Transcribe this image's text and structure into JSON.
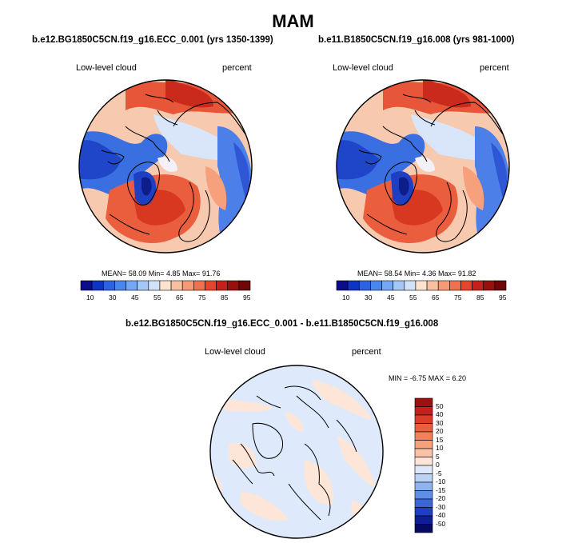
{
  "title": "MAM",
  "panels": [
    {
      "case": "b.e12.BG1850C5CN.f19_g16.ECC_0.001 (yrs 1350-1399)",
      "variable": "Low-level cloud",
      "units": "percent",
      "stats": "MEAN=  58.09  Min=   4.85  Max=  91.76"
    },
    {
      "case": "b.e11.B1850C5CN.f19_g16.008 (yrs 981-1000)",
      "variable": "Low-level cloud",
      "units": "percent",
      "stats": "MEAN=  58.54  Min=   4.36  Max=  91.82"
    }
  ],
  "diff_panel": {
    "case": "b.e12.BG1850C5CN.f19_g16.ECC_0.001 - b.e11.B1850C5CN.f19_g16.008",
    "variable": "Low-level cloud",
    "units": "percent",
    "minmax": "MIN =  -6.75 MAX =   6.20"
  },
  "horizontal_colorbar": {
    "ticks": [
      "10",
      "30",
      "45",
      "55",
      "65",
      "75",
      "85",
      "95"
    ],
    "colors": [
      "#0d0d8c",
      "#1133c4",
      "#2b63e0",
      "#4a86ee",
      "#77a6f3",
      "#a6c6f6",
      "#d0e1f9",
      "#fbe3d2",
      "#f8c0a2",
      "#f49a76",
      "#ee7150",
      "#e2462b",
      "#c7201a",
      "#98100e",
      "#6e0707"
    ]
  },
  "vertical_colorbar": {
    "ticks": [
      "50",
      "40",
      "30",
      "20",
      "15",
      "10",
      "5",
      "0",
      "-5",
      "-10",
      "-15",
      "-20",
      "-30",
      "-40",
      "-50"
    ],
    "colors": [
      "#a01010",
      "#c81e1e",
      "#de3c2a",
      "#ea5e3e",
      "#f28058",
      "#f6a07c",
      "#f9c3a7",
      "#fde6d8",
      "#dde9fa",
      "#bcd3f5",
      "#8fb3ef",
      "#5f8ee6",
      "#3a66da",
      "#1e3fc2",
      "#0e1e98",
      "#070a62"
    ]
  }
}
